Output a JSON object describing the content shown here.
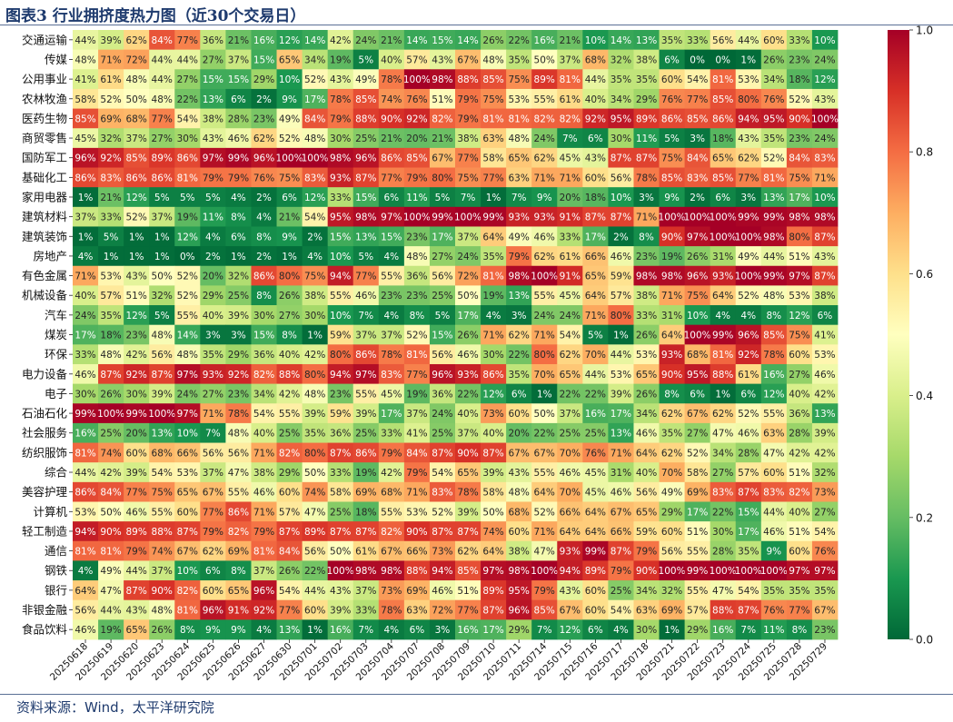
{
  "title": "图表3 行业拥挤度热力图（近30个交易日）",
  "source": "资料来源：Wind，太平洋研究院",
  "chart_data": {
    "type": "heatmap",
    "x": [
      "20250618",
      "20250619",
      "20250620",
      "20250623",
      "20250624",
      "20250625",
      "20250626",
      "20250627",
      "20250630",
      "20250701",
      "20250702",
      "20250703",
      "20250704",
      "20250707",
      "20250708",
      "20250709",
      "20250710",
      "20250711",
      "20250714",
      "20250715",
      "20250716",
      "20250717",
      "20250718",
      "20250721",
      "20250722",
      "20250723",
      "20250724",
      "20250725",
      "20250728",
      "20250729"
    ],
    "y": [
      "交通运输",
      "传媒",
      "公用事业",
      "农林牧渔",
      "医药生物",
      "商贸零售",
      "国防军工",
      "基础化工",
      "家用电器",
      "建筑材料",
      "建筑装饰",
      "房地产",
      "有色金属",
      "机械设备",
      "汽车",
      "煤炭",
      "环保",
      "电力设备",
      "电子",
      "石油石化",
      "社会服务",
      "纺织服饰",
      "综合",
      "美容护理",
      "计算机",
      "轻工制造",
      "通信",
      "钢铁",
      "银行",
      "非银金融",
      "食品饮料"
    ],
    "values": [
      [
        44,
        39,
        62,
        84,
        77,
        36,
        21,
        16,
        12,
        14,
        42,
        24,
        21,
        14,
        15,
        14,
        26,
        22,
        16,
        21,
        10,
        14,
        13,
        35,
        33,
        56,
        44,
        60,
        33,
        10
      ],
      [
        48,
        71,
        72,
        44,
        44,
        27,
        37,
        15,
        65,
        34,
        19,
        5,
        40,
        57,
        43,
        67,
        48,
        35,
        50,
        37,
        68,
        32,
        38,
        6,
        0,
        0,
        1,
        26,
        23,
        24
      ],
      [
        41,
        61,
        48,
        44,
        27,
        15,
        15,
        29,
        10,
        52,
        43,
        49,
        78,
        100,
        98,
        88,
        85,
        75,
        89,
        81,
        44,
        35,
        35,
        60,
        54,
        81,
        53,
        34,
        18,
        12
      ],
      [
        58,
        52,
        50,
        48,
        22,
        13,
        6,
        2,
        9,
        17,
        78,
        85,
        74,
        76,
        51,
        79,
        75,
        53,
        55,
        61,
        40,
        34,
        29,
        76,
        77,
        85,
        80,
        76,
        52,
        43
      ],
      [
        85,
        69,
        68,
        77,
        54,
        38,
        28,
        23,
        49,
        84,
        79,
        88,
        90,
        92,
        82,
        79,
        81,
        81,
        82,
        82,
        92,
        95,
        89,
        86,
        85,
        86,
        94,
        95,
        90,
        100
      ],
      [
        45,
        32,
        37,
        27,
        30,
        43,
        46,
        62,
        52,
        48,
        30,
        25,
        21,
        20,
        21,
        38,
        63,
        48,
        24,
        7,
        6,
        30,
        11,
        5,
        3,
        18,
        43,
        35,
        23,
        24
      ],
      [
        96,
        92,
        85,
        89,
        86,
        97,
        99,
        96,
        100,
        100,
        98,
        96,
        86,
        85,
        67,
        77,
        58,
        65,
        62,
        45,
        43,
        87,
        87,
        75,
        84,
        65,
        62,
        52,
        84,
        83
      ],
      [
        86,
        83,
        86,
        86,
        81,
        79,
        79,
        76,
        75,
        83,
        93,
        87,
        77,
        79,
        80,
        75,
        77,
        63,
        71,
        71,
        60,
        56,
        78,
        85,
        83,
        85,
        77,
        81,
        75,
        71
      ],
      [
        1,
        21,
        12,
        5,
        5,
        5,
        4,
        2,
        6,
        12,
        33,
        15,
        6,
        11,
        5,
        7,
        1,
        7,
        9,
        20,
        18,
        10,
        3,
        9,
        2,
        6,
        3,
        13,
        17,
        10
      ],
      [
        37,
        33,
        52,
        37,
        19,
        11,
        8,
        4,
        21,
        54,
        95,
        98,
        97,
        100,
        99,
        100,
        99,
        93,
        93,
        91,
        87,
        87,
        71,
        100,
        100,
        100,
        99,
        99,
        98,
        98
      ],
      [
        1,
        5,
        1,
        1,
        12,
        4,
        6,
        8,
        9,
        2,
        15,
        13,
        15,
        23,
        17,
        37,
        64,
        49,
        46,
        33,
        17,
        2,
        8,
        90,
        97,
        100,
        100,
        98,
        80,
        87
      ],
      [
        4,
        1,
        1,
        1,
        0,
        2,
        1,
        2,
        1,
        4,
        10,
        5,
        4,
        48,
        27,
        24,
        35,
        79,
        62,
        61,
        66,
        46,
        23,
        19,
        26,
        31,
        49,
        44,
        51,
        43
      ],
      [
        71,
        53,
        43,
        50,
        52,
        20,
        32,
        86,
        80,
        75,
        94,
        77,
        55,
        36,
        56,
        72,
        81,
        98,
        100,
        91,
        65,
        59,
        98,
        98,
        96,
        93,
        100,
        99,
        97,
        87
      ],
      [
        40,
        57,
        51,
        32,
        52,
        29,
        25,
        8,
        26,
        38,
        55,
        46,
        23,
        23,
        25,
        50,
        19,
        13,
        55,
        45,
        64,
        57,
        38,
        71,
        75,
        64,
        52,
        48,
        53,
        38
      ],
      [
        24,
        35,
        12,
        5,
        55,
        40,
        39,
        30,
        27,
        30,
        10,
        7,
        4,
        8,
        5,
        17,
        4,
        3,
        24,
        24,
        71,
        80,
        33,
        31,
        10,
        4,
        4,
        8,
        12,
        6
      ],
      [
        17,
        18,
        23,
        48,
        14,
        3,
        3,
        15,
        8,
        1,
        59,
        37,
        37,
        52,
        15,
        26,
        71,
        62,
        71,
        54,
        5,
        1,
        26,
        64,
        100,
        99,
        96,
        85,
        75,
        41
      ],
      [
        33,
        48,
        42,
        56,
        48,
        35,
        29,
        36,
        40,
        42,
        80,
        86,
        78,
        81,
        56,
        46,
        30,
        22,
        80,
        62,
        70,
        44,
        53,
        93,
        68,
        81,
        92,
        78,
        60,
        53
      ],
      [
        46,
        87,
        92,
        87,
        97,
        93,
        92,
        82,
        88,
        80,
        94,
        97,
        83,
        77,
        96,
        93,
        86,
        35,
        70,
        65,
        44,
        53,
        65,
        90,
        95,
        88,
        61,
        16,
        27,
        46
      ],
      [
        30,
        26,
        30,
        39,
        24,
        27,
        23,
        34,
        42,
        48,
        23,
        55,
        45,
        19,
        36,
        22,
        12,
        6,
        1,
        22,
        22,
        39,
        26,
        8,
        6,
        1,
        6,
        12,
        40,
        42
      ],
      [
        99,
        100,
        99,
        100,
        97,
        71,
        78,
        54,
        55,
        39,
        59,
        39,
        17,
        37,
        24,
        40,
        73,
        60,
        50,
        37,
        16,
        17,
        34,
        62,
        67,
        62,
        52,
        55,
        36,
        13
      ],
      [
        16,
        25,
        20,
        13,
        10,
        7,
        48,
        40,
        25,
        35,
        36,
        25,
        33,
        41,
        25,
        37,
        40,
        20,
        22,
        25,
        25,
        13,
        46,
        35,
        27,
        47,
        46,
        63,
        28,
        39
      ],
      [
        81,
        74,
        60,
        68,
        66,
        56,
        56,
        71,
        82,
        80,
        87,
        86,
        79,
        84,
        87,
        90,
        87,
        67,
        67,
        70,
        76,
        71,
        64,
        62,
        52,
        34,
        28,
        47,
        42,
        42
      ],
      [
        44,
        42,
        39,
        54,
        53,
        37,
        47,
        38,
        29,
        50,
        33,
        19,
        42,
        79,
        54,
        65,
        39,
        43,
        55,
        46,
        45,
        31,
        40,
        70,
        58,
        27,
        57,
        60,
        51,
        32
      ],
      [
        86,
        84,
        77,
        75,
        65,
        67,
        55,
        46,
        60,
        74,
        58,
        69,
        68,
        71,
        83,
        78,
        58,
        48,
        64,
        70,
        45,
        46,
        56,
        49,
        69,
        83,
        87,
        83,
        82,
        73
      ],
      [
        53,
        50,
        46,
        55,
        60,
        77,
        86,
        71,
        57,
        47,
        25,
        18,
        55,
        53,
        52,
        39,
        50,
        68,
        52,
        66,
        64,
        67,
        65,
        29,
        17,
        22,
        15,
        44,
        40,
        27
      ],
      [
        94,
        90,
        89,
        88,
        87,
        79,
        82,
        79,
        87,
        89,
        87,
        87,
        82,
        90,
        87,
        87,
        74,
        60,
        71,
        64,
        64,
        66,
        59,
        60,
        51,
        30,
        17,
        46,
        51,
        54
      ],
      [
        81,
        81,
        79,
        74,
        67,
        62,
        69,
        81,
        84,
        56,
        50,
        61,
        67,
        66,
        73,
        62,
        64,
        38,
        47,
        93,
        99,
        87,
        79,
        56,
        55,
        28,
        35,
        9,
        60,
        76
      ],
      [
        4,
        49,
        44,
        37,
        10,
        6,
        8,
        37,
        26,
        22,
        100,
        98,
        98,
        88,
        94,
        85,
        97,
        98,
        100,
        94,
        89,
        79,
        90,
        100,
        99,
        100,
        100,
        100,
        97,
        97
      ],
      [
        64,
        47,
        87,
        90,
        82,
        60,
        65,
        96,
        54,
        44,
        43,
        37,
        73,
        69,
        46,
        51,
        89,
        95,
        79,
        43,
        60,
        25,
        34,
        32,
        55,
        47,
        54,
        35,
        35,
        35
      ],
      [
        56,
        44,
        43,
        48,
        81,
        96,
        91,
        92,
        77,
        60,
        39,
        33,
        78,
        63,
        72,
        77,
        87,
        96,
        85,
        67,
        60,
        54,
        63,
        69,
        57,
        88,
        87,
        76,
        77,
        67
      ],
      [
        46,
        19,
        65,
        26,
        8,
        9,
        9,
        4,
        13,
        1,
        16,
        7,
        4,
        6,
        3,
        16,
        17,
        29,
        7,
        12,
        6,
        4,
        30,
        1,
        29,
        16,
        7,
        11,
        8,
        23
      ]
    ],
    "value_format": "percent",
    "colormap": "RdYlGn_r",
    "colorbar": {
      "min": 0,
      "max": 1,
      "ticks": [
        "0.0",
        "0.2",
        "0.4",
        "0.6",
        "0.8",
        "1.0"
      ]
    }
  }
}
